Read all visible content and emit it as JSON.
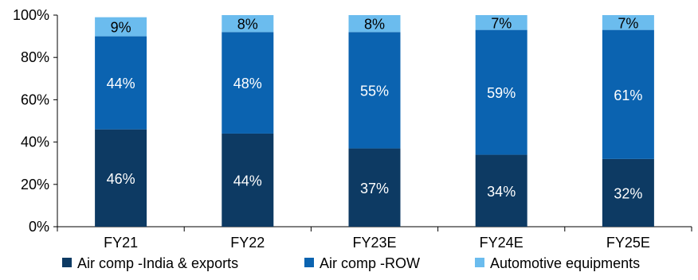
{
  "chart_data": {
    "type": "bar",
    "stacked": true,
    "categories": [
      "FY21",
      "FY22",
      "FY23E",
      "FY24E",
      "FY25E"
    ],
    "series": [
      {
        "name": "Air comp -India & exports",
        "values": [
          46,
          44,
          37,
          34,
          32
        ],
        "labels": [
          "46%",
          "44%",
          "37%",
          "34%",
          "32%"
        ],
        "color": "#0d3a63",
        "label_color": "#ffffff"
      },
      {
        "name": "Air comp -ROW",
        "values": [
          44,
          48,
          55,
          59,
          61
        ],
        "labels": [
          "44%",
          "48%",
          "55%",
          "59%",
          "61%"
        ],
        "color": "#0b63b0",
        "label_color": "#ffffff"
      },
      {
        "name": "Automotive equipments",
        "values": [
          9,
          8,
          8,
          7,
          7
        ],
        "labels": [
          "9%",
          "8%",
          "8%",
          "7%",
          "7%"
        ],
        "color": "#6bbcee",
        "label_color": "#000000"
      }
    ],
    "yticks": [
      "0%",
      "20%",
      "40%",
      "60%",
      "80%",
      "100%"
    ],
    "ylim": [
      0,
      100
    ],
    "legend_position": "bottom",
    "grid": false
  }
}
